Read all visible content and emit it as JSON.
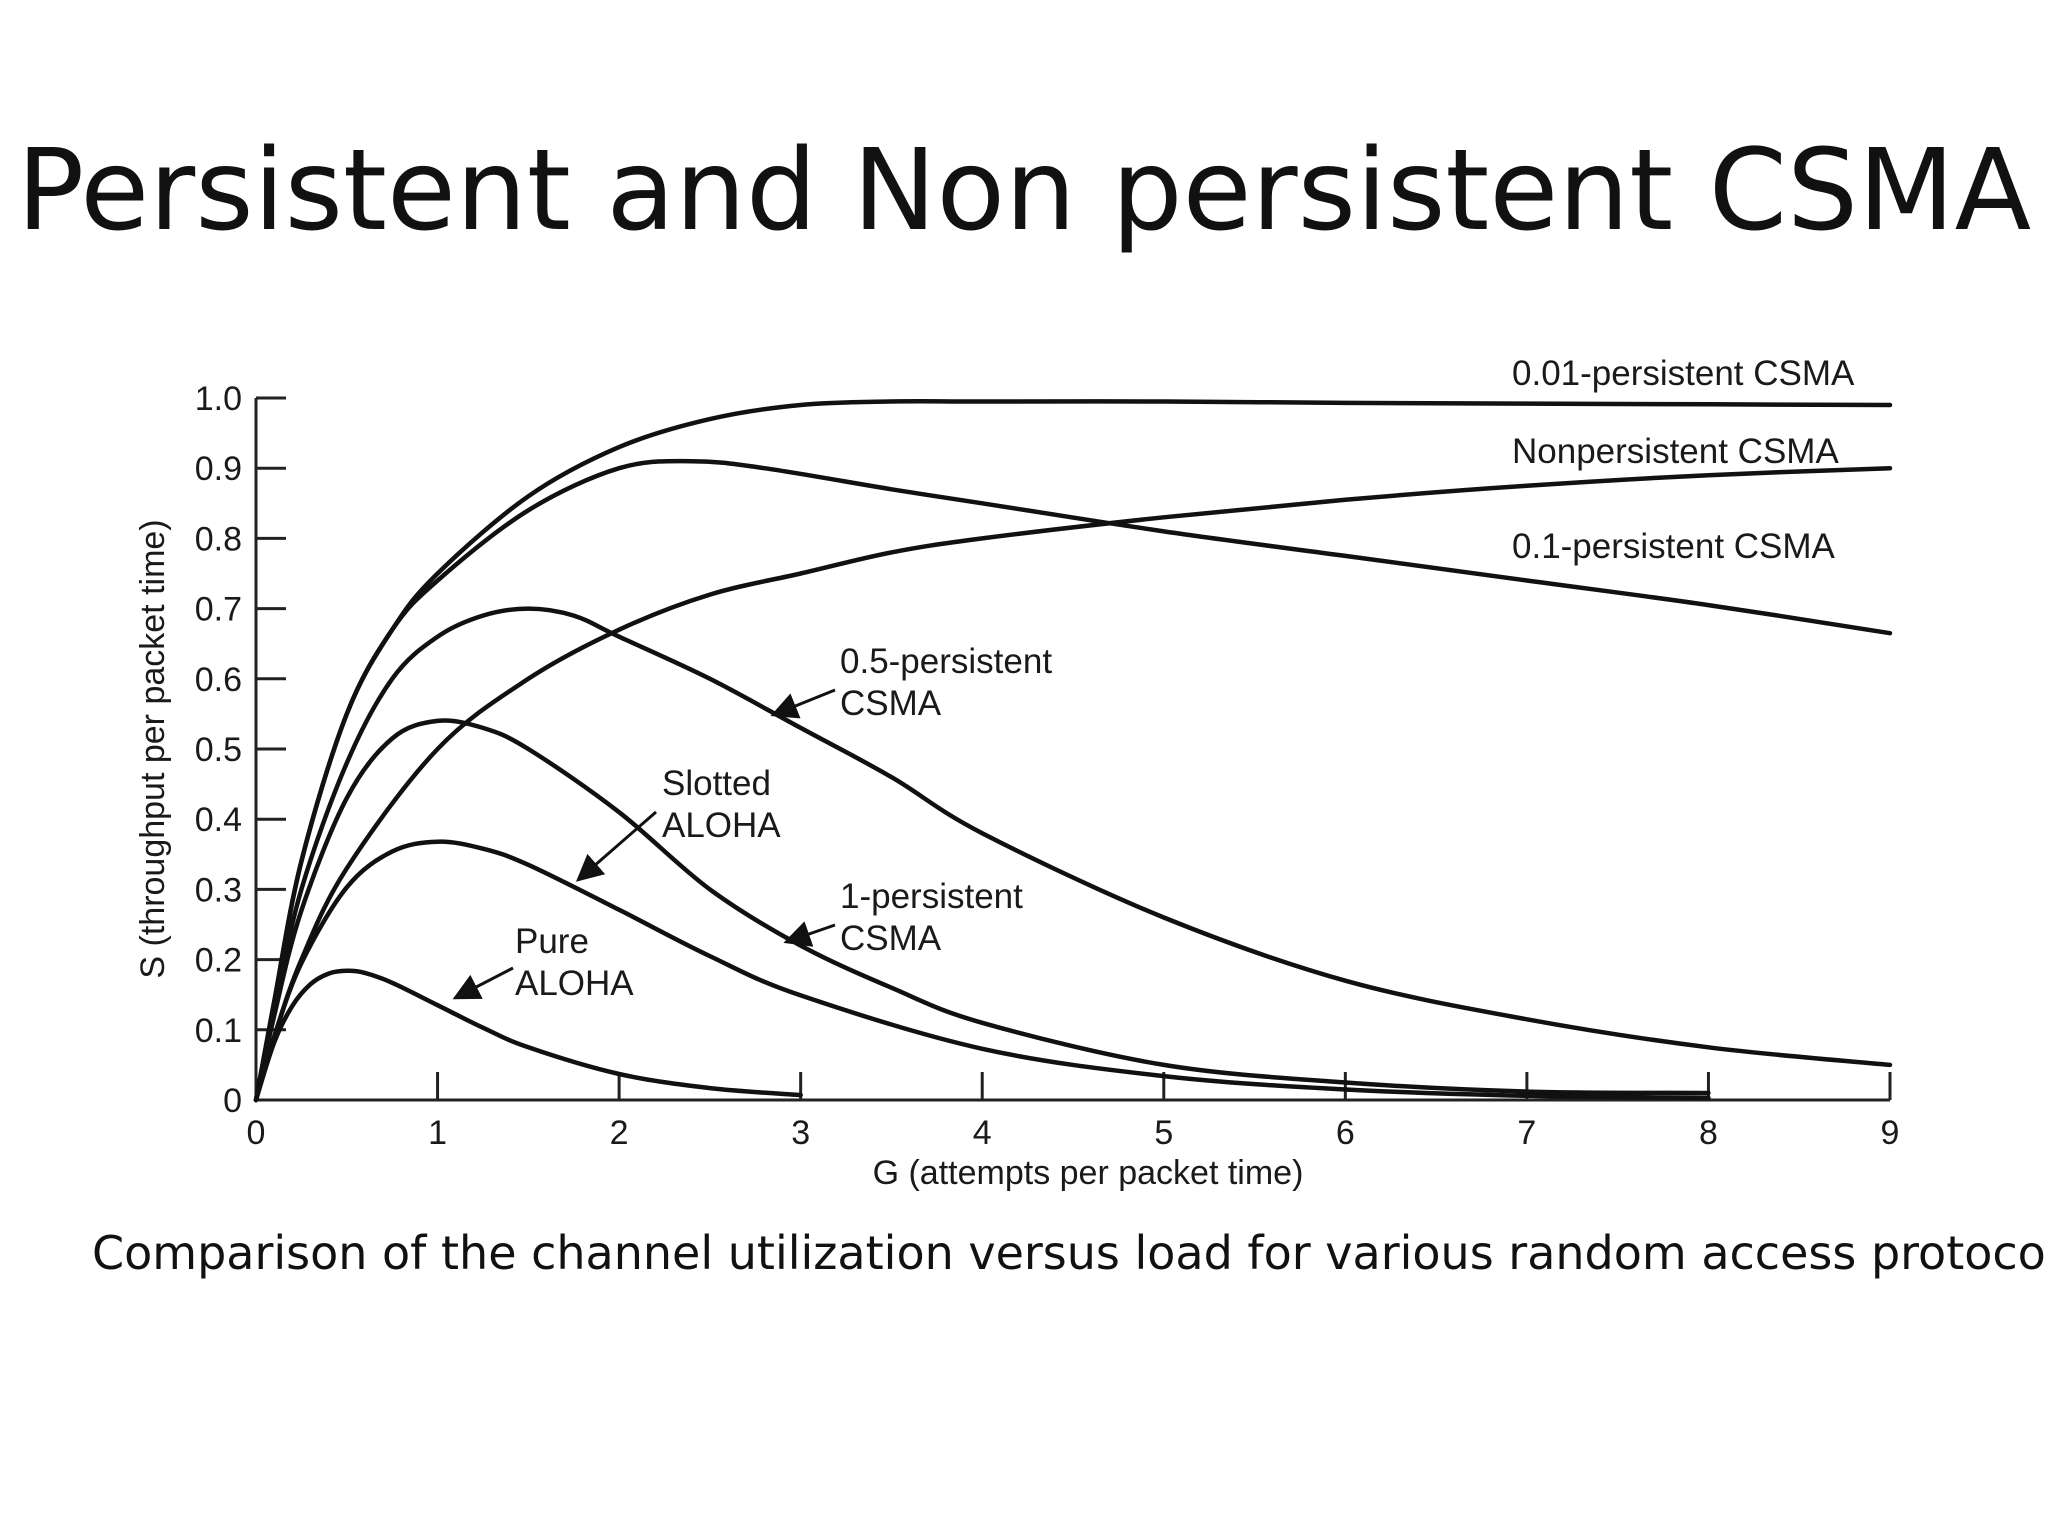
{
  "slide": {
    "title": "Persistent and Non persistent CSMA",
    "caption": "Comparison of the channel utilization versus load for various random access protocols."
  },
  "chart_data": {
    "type": "line",
    "xlabel": "G (attempts per packet time)",
    "ylabel": "S (throughput per packet time)",
    "xlim": [
      0,
      9
    ],
    "ylim": [
      0,
      1.0
    ],
    "x_ticks": [
      "0",
      "1",
      "2",
      "3",
      "4",
      "5",
      "6",
      "7",
      "8",
      "9"
    ],
    "y_ticks": [
      "0",
      "0.1",
      "0.2",
      "0.3",
      "0.4",
      "0.5",
      "0.6",
      "0.7",
      "0.8",
      "0.9",
      "1.0"
    ],
    "grid": false,
    "line_color": "#111111",
    "series": [
      {
        "name": "0.01-persistent CSMA",
        "label_lines": [
          "0.01-persistent CSMA"
        ],
        "x": [
          0,
          0.1,
          0.25,
          0.5,
          0.75,
          1,
          1.5,
          2,
          2.5,
          3,
          3.5,
          4,
          5,
          6,
          7,
          8,
          9
        ],
        "y": [
          0,
          0.14,
          0.34,
          0.55,
          0.67,
          0.75,
          0.86,
          0.93,
          0.97,
          0.99,
          0.995,
          0.995,
          0.995,
          0.993,
          0.992,
          0.991,
          0.99
        ]
      },
      {
        "name": "Nonpersistent CSMA",
        "label_lines": [
          "Nonpersistent CSMA"
        ],
        "x": [
          0,
          0.1,
          0.25,
          0.5,
          1,
          1.5,
          2,
          2.5,
          3,
          3.5,
          4,
          5,
          6,
          7,
          8,
          9
        ],
        "y": [
          0,
          0.09,
          0.2,
          0.33,
          0.5,
          0.6,
          0.67,
          0.72,
          0.75,
          0.78,
          0.8,
          0.83,
          0.855,
          0.875,
          0.89,
          0.9
        ]
      },
      {
        "name": "0.1-persistent CSMA",
        "label_lines": [
          "0.1-persistent CSMA"
        ],
        "x": [
          0,
          0.1,
          0.25,
          0.5,
          0.75,
          1,
          1.5,
          2,
          2.4,
          2.8,
          3.5,
          4,
          5,
          6,
          7,
          8,
          9
        ],
        "y": [
          0,
          0.14,
          0.34,
          0.55,
          0.67,
          0.74,
          0.84,
          0.9,
          0.91,
          0.9,
          0.87,
          0.85,
          0.81,
          0.775,
          0.74,
          0.705,
          0.665
        ]
      },
      {
        "name": "0.5-persistent CSMA",
        "label_lines": [
          "0.5-persistent",
          "CSMA"
        ],
        "x": [
          0,
          0.1,
          0.25,
          0.5,
          0.75,
          1,
          1.25,
          1.5,
          1.75,
          2,
          2.5,
          3,
          3.5,
          4,
          5,
          6,
          7,
          8,
          9
        ],
        "y": [
          0,
          0.13,
          0.3,
          0.48,
          0.6,
          0.66,
          0.69,
          0.7,
          0.69,
          0.66,
          0.6,
          0.53,
          0.46,
          0.38,
          0.26,
          0.17,
          0.115,
          0.075,
          0.05
        ]
      },
      {
        "name": "1-persistent CSMA",
        "label_lines": [
          "1-persistent",
          "CSMA"
        ],
        "x": [
          0,
          0.1,
          0.25,
          0.5,
          0.75,
          1,
          1.25,
          1.5,
          2,
          2.5,
          3,
          3.5,
          4,
          5,
          6,
          7,
          8
        ],
        "y": [
          0,
          0.12,
          0.27,
          0.43,
          0.515,
          0.54,
          0.53,
          0.5,
          0.41,
          0.3,
          0.22,
          0.16,
          0.11,
          0.05,
          0.025,
          0.012,
          0.01
        ]
      },
      {
        "name": "Slotted ALOHA",
        "label_lines": [
          "Slotted",
          "ALOHA"
        ],
        "x": [
          0,
          0.1,
          0.25,
          0.5,
          0.75,
          1,
          1.25,
          1.5,
          2,
          2.5,
          3,
          4,
          5,
          6,
          7,
          8
        ],
        "y": [
          0,
          0.09,
          0.195,
          0.303,
          0.354,
          0.368,
          0.358,
          0.335,
          0.271,
          0.205,
          0.149,
          0.073,
          0.034,
          0.015,
          0.006,
          0.003
        ]
      },
      {
        "name": "Pure ALOHA",
        "label_lines": [
          "Pure",
          "ALOHA"
        ],
        "x": [
          0,
          0.1,
          0.2,
          0.3,
          0.4,
          0.5,
          0.6,
          0.75,
          1,
          1.25,
          1.5,
          2,
          2.5,
          3
        ],
        "y": [
          0,
          0.082,
          0.134,
          0.165,
          0.18,
          0.184,
          0.181,
          0.167,
          0.135,
          0.103,
          0.075,
          0.037,
          0.017,
          0.007
        ]
      }
    ]
  }
}
